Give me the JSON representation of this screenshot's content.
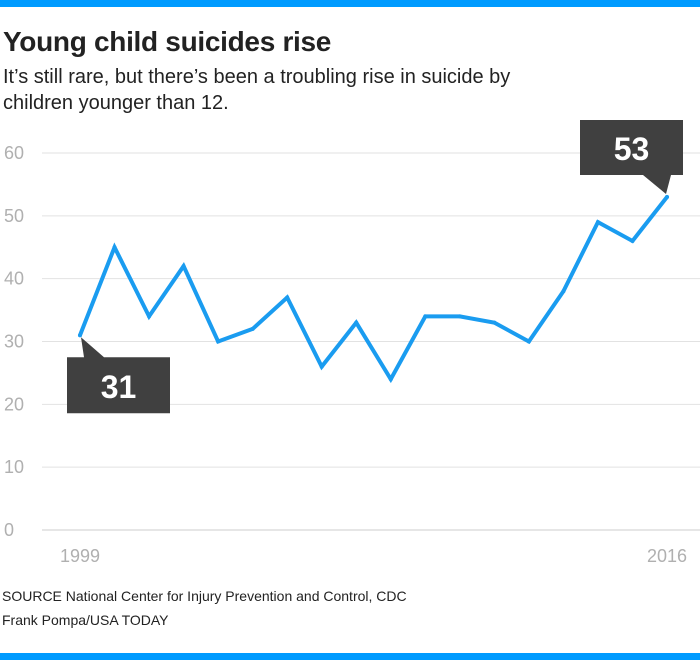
{
  "title": "Young child suicides rise",
  "subtitle": "It’s still rare, but there’s been a troubling rise in suicide by children younger than 12.",
  "source": "SOURCE National Center for Injury Prevention and Control, CDC",
  "credit": "Frank Pompa/USA TODAY",
  "colors": {
    "accent": "#009bff",
    "line": "#1a9cf0",
    "callout": "#404040",
    "grid": "#e2e2e2",
    "tick": "#b0b0b0"
  },
  "chart_data": {
    "type": "line",
    "x": [
      1999,
      2000,
      2001,
      2002,
      2003,
      2004,
      2005,
      2006,
      2007,
      2008,
      2009,
      2010,
      2011,
      2012,
      2013,
      2014,
      2015,
      2016
    ],
    "values": [
      31,
      45,
      34,
      42,
      30,
      32,
      37,
      26,
      33,
      24,
      34,
      34,
      33,
      30,
      38,
      49,
      46,
      53
    ],
    "ylim": [
      0,
      60
    ],
    "yticks": [
      0,
      10,
      20,
      30,
      40,
      50,
      60
    ],
    "xtick_labels": [
      "1999",
      "2016"
    ],
    "grid": true,
    "annotations": [
      {
        "x": 1999,
        "label": "31"
      },
      {
        "x": 2016,
        "label": "53"
      }
    ]
  }
}
